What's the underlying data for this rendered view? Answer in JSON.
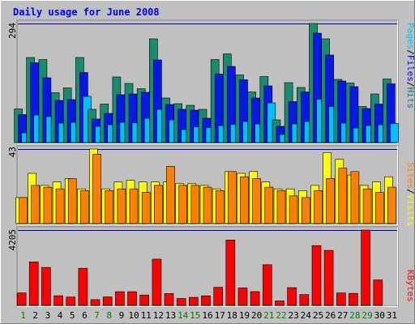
{
  "chart_data": {
    "type": "bar",
    "title": "Daily usage for June 2008",
    "x": [
      "1",
      "2",
      "3",
      "4",
      "5",
      "6",
      "7",
      "8",
      "9",
      "10",
      "11",
      "12",
      "13",
      "14",
      "15",
      "16",
      "17",
      "18",
      "19",
      "20",
      "21",
      "22",
      "23",
      "24",
      "25",
      "26",
      "27",
      "28",
      "29",
      "30",
      "31"
    ],
    "weekend_days": [
      "1",
      "7",
      "8",
      "14",
      "15",
      "21",
      "22",
      "28",
      "29"
    ],
    "panels": [
      {
        "id": "hits-panel",
        "ymax_label": "294",
        "ymax": 294,
        "legend": [
          "Pages",
          "/",
          "Files",
          "/",
          "Hits"
        ],
        "legend_colors": [
          "#00c0ff",
          "#000000",
          "#0000ff",
          "#000000",
          "#008080"
        ],
        "series": [
          {
            "name": "Hits",
            "color": "#188c6c",
            "values": [
              83,
              210,
              205,
              123,
              135,
              210,
              82,
              95,
              162,
              146,
              133,
              256,
              110,
              96,
              92,
              82,
              205,
              219,
              167,
              125,
              163,
              56,
              148,
              136,
              294,
              256,
              156,
              147,
              89,
              120,
              157
            ]
          },
          {
            "name": "Files",
            "color": "#0818e8",
            "values": [
              69,
              197,
              160,
              104,
              106,
              173,
              58,
              72,
              118,
              120,
              124,
              204,
              94,
              82,
              80,
              60,
              169,
              188,
              155,
              110,
              140,
              40,
              101,
              125,
              270,
              216,
              152,
              138,
              84,
              95,
              145
            ]
          },
          {
            "name": "Pages",
            "color": "#00c0ff",
            "values": [
              24,
              68,
              64,
              48,
              50,
              114,
              40,
              44,
              50,
              49,
              60,
              82,
              56,
              32,
              39,
              37,
              42,
              45,
              52,
              46,
              98,
              20,
              46,
              52,
              107,
              89,
              48,
              36,
              42,
              44,
              47
            ]
          }
        ]
      },
      {
        "id": "visits-panel",
        "ymax_label": "43",
        "ymax": 43,
        "legend": [
          "Sites",
          "/",
          "Visits"
        ],
        "legend_colors": [
          "#ff8000",
          "#000000",
          "#ffff00"
        ],
        "series": [
          {
            "name": "Visits",
            "color": "#ffff00",
            "values": [
              15,
              29,
              22,
              24,
              26,
              20,
              43,
              20,
              24,
              25,
              24,
              24,
              24,
              23,
              23,
              22,
              20,
              30,
              29,
              30,
              24,
              20,
              20,
              19,
              22,
              41,
              37,
              28,
              22,
              24,
              27
            ]
          },
          {
            "name": "Sites",
            "color": "#ff8000",
            "values": [
              15,
              22,
              21,
              20,
              26,
              19,
              40,
              19,
              20,
              20,
              18,
              22,
              33,
              22,
              22,
              21,
              19,
              30,
              27,
              26,
              21,
              19,
              16,
              15,
              19,
              26,
              32,
              30,
              20,
              18,
              21
            ]
          }
        ]
      },
      {
        "id": "kbytes-panel",
        "ymax_label": "4205",
        "ymax": 4205,
        "legend": [
          "KBytes"
        ],
        "legend_colors": [
          "#ff0000"
        ],
        "series": [
          {
            "name": "KBytes",
            "color": "#ff0000",
            "values": [
              698,
              2430,
              2121,
              538,
              464,
              2071,
              320,
              476,
              765,
              765,
              581,
              2582,
              666,
              383,
              448,
              535,
              1008,
              3647,
              970,
              767,
              2270,
              248,
              990,
              600,
              3335,
              3070,
              690,
              670,
              4205,
              1418,
              0
            ]
          }
        ]
      }
    ],
    "colors": {
      "background": "#c0c0c0",
      "title": "#0000ff",
      "weekday_label": "#000000",
      "weekend_label": "#008000",
      "gridline": "#0000c0",
      "bar_outline": "#000000"
    }
  }
}
